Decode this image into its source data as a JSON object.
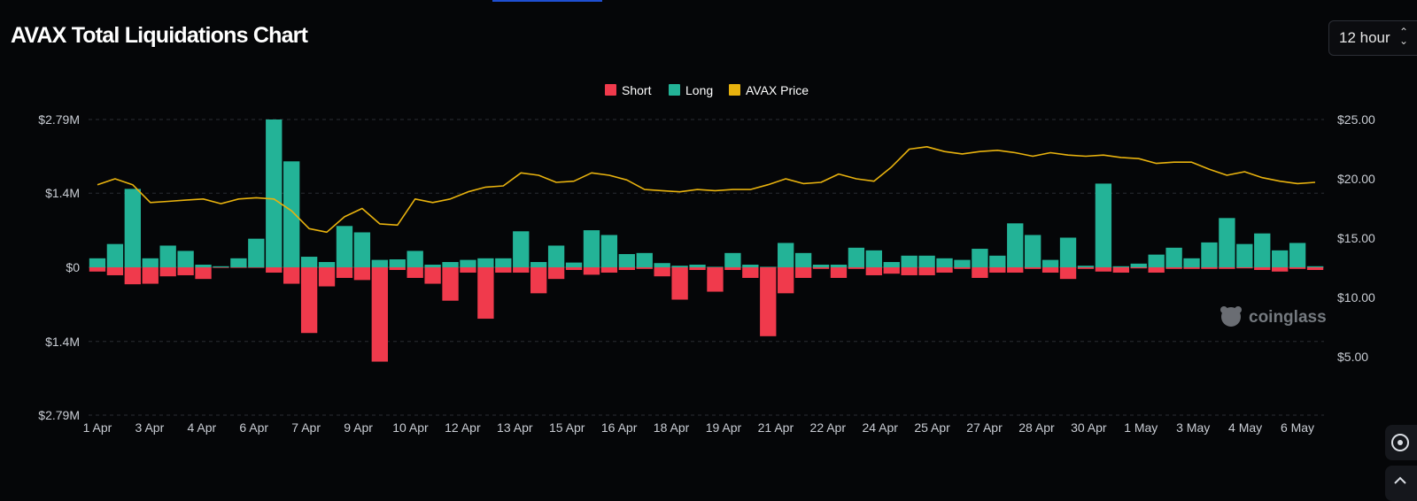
{
  "header": {
    "title": "AVAX Total Liquidations Chart",
    "interval_label": "12 hour"
  },
  "watermark": "coinglass",
  "colors": {
    "short": "#f03a4c",
    "long": "#23b397",
    "price": "#e8b20e",
    "grid": "#2a2d33",
    "axis_text": "#c9cdd4",
    "background": "#050608"
  },
  "chart_data": {
    "type": "bar",
    "title": "AVAX Total Liquidations Chart",
    "legend": {
      "position": "top-center",
      "items": [
        {
          "name": "Short",
          "color": "#f03a4c"
        },
        {
          "name": "Long",
          "color": "#23b397"
        },
        {
          "name": "AVAX Price",
          "color": "#e8b20e"
        }
      ]
    },
    "x_tick_labels": [
      "1 Apr",
      "3 Apr",
      "4 Apr",
      "6 Apr",
      "7 Apr",
      "9 Apr",
      "10 Apr",
      "12 Apr",
      "13 Apr",
      "15 Apr",
      "16 Apr",
      "18 Apr",
      "19 Apr",
      "21 Apr",
      "22 Apr",
      "24 Apr",
      "25 Apr",
      "27 Apr",
      "28 Apr",
      "30 Apr",
      "1 May",
      "3 May",
      "4 May",
      "6 May"
    ],
    "y_left": {
      "ticks": [
        2.79,
        1.4,
        0,
        -1.4,
        -2.79
      ],
      "tick_labels": [
        "$2.79M",
        "$1.4M",
        "$0",
        "$1.4M",
        "$2.79M"
      ],
      "range": [
        -2.79,
        2.79
      ],
      "unit": "USD millions"
    },
    "y_right": {
      "ticks": [
        25,
        20,
        15,
        10,
        5
      ],
      "tick_labels": [
        "$25.00",
        "$20.00",
        "$15.00",
        "$10.00",
        "$5.00"
      ],
      "range": [
        0,
        25
      ]
    },
    "grid": "horizontal dashed",
    "long": [
      0.17,
      0.44,
      1.48,
      0.17,
      0.41,
      0.31,
      0.05,
      0.02,
      0.17,
      0.54,
      2.79,
      2.0,
      0.2,
      0.1,
      0.78,
      0.66,
      0.14,
      0.15,
      0.31,
      0.05,
      0.1,
      0.14,
      0.17,
      0.17,
      0.68,
      0.1,
      0.41,
      0.09,
      0.7,
      0.61,
      0.25,
      0.27,
      0.08,
      0.03,
      0.05,
      0.01,
      0.27,
      0.05,
      0.01,
      0.46,
      0.27,
      0.05,
      0.05,
      0.37,
      0.32,
      0.1,
      0.22,
      0.22,
      0.17,
      0.14,
      0.35,
      0.22,
      0.83,
      0.61,
      0.14,
      0.56,
      0.03,
      1.58,
      0.02,
      0.07,
      0.24,
      0.37,
      0.17,
      0.47,
      0.93,
      0.44,
      0.64,
      0.32,
      0.46,
      0.02
    ],
    "short": [
      0.08,
      0.15,
      0.32,
      0.31,
      0.17,
      0.15,
      0.22,
      0.01,
      0.01,
      0.01,
      0.1,
      0.31,
      1.24,
      0.36,
      0.2,
      0.24,
      1.78,
      0.05,
      0.2,
      0.31,
      0.63,
      0.1,
      0.97,
      0.1,
      0.1,
      0.49,
      0.22,
      0.05,
      0.14,
      0.1,
      0.05,
      0.03,
      0.17,
      0.61,
      0.05,
      0.46,
      0.05,
      0.2,
      1.3,
      0.49,
      0.2,
      0.03,
      0.2,
      0.03,
      0.15,
      0.12,
      0.15,
      0.15,
      0.1,
      0.03,
      0.2,
      0.1,
      0.1,
      0.03,
      0.1,
      0.22,
      0.03,
      0.08,
      0.1,
      0.02,
      0.1,
      0.03,
      0.03,
      0.03,
      0.03,
      0.02,
      0.05,
      0.08,
      0.03,
      0.05
    ],
    "price": [
      19.5,
      20.0,
      19.5,
      18.0,
      18.1,
      18.2,
      18.3,
      17.9,
      18.3,
      18.4,
      18.3,
      17.3,
      15.8,
      15.5,
      16.8,
      17.5,
      16.2,
      16.1,
      18.3,
      18.0,
      18.3,
      18.9,
      19.3,
      19.4,
      20.5,
      20.3,
      19.7,
      19.8,
      20.5,
      20.3,
      19.9,
      19.1,
      19.0,
      18.9,
      19.1,
      19.0,
      19.1,
      19.1,
      19.5,
      20.0,
      19.6,
      19.7,
      20.4,
      20.0,
      19.8,
      21.0,
      22.5,
      22.7,
      22.3,
      22.1,
      22.3,
      22.4,
      22.2,
      21.9,
      22.2,
      22.0,
      21.9,
      22.0,
      21.8,
      21.7,
      21.3,
      21.4,
      21.4,
      20.8,
      20.3,
      20.6,
      20.1,
      19.8,
      19.6,
      19.7
    ]
  }
}
